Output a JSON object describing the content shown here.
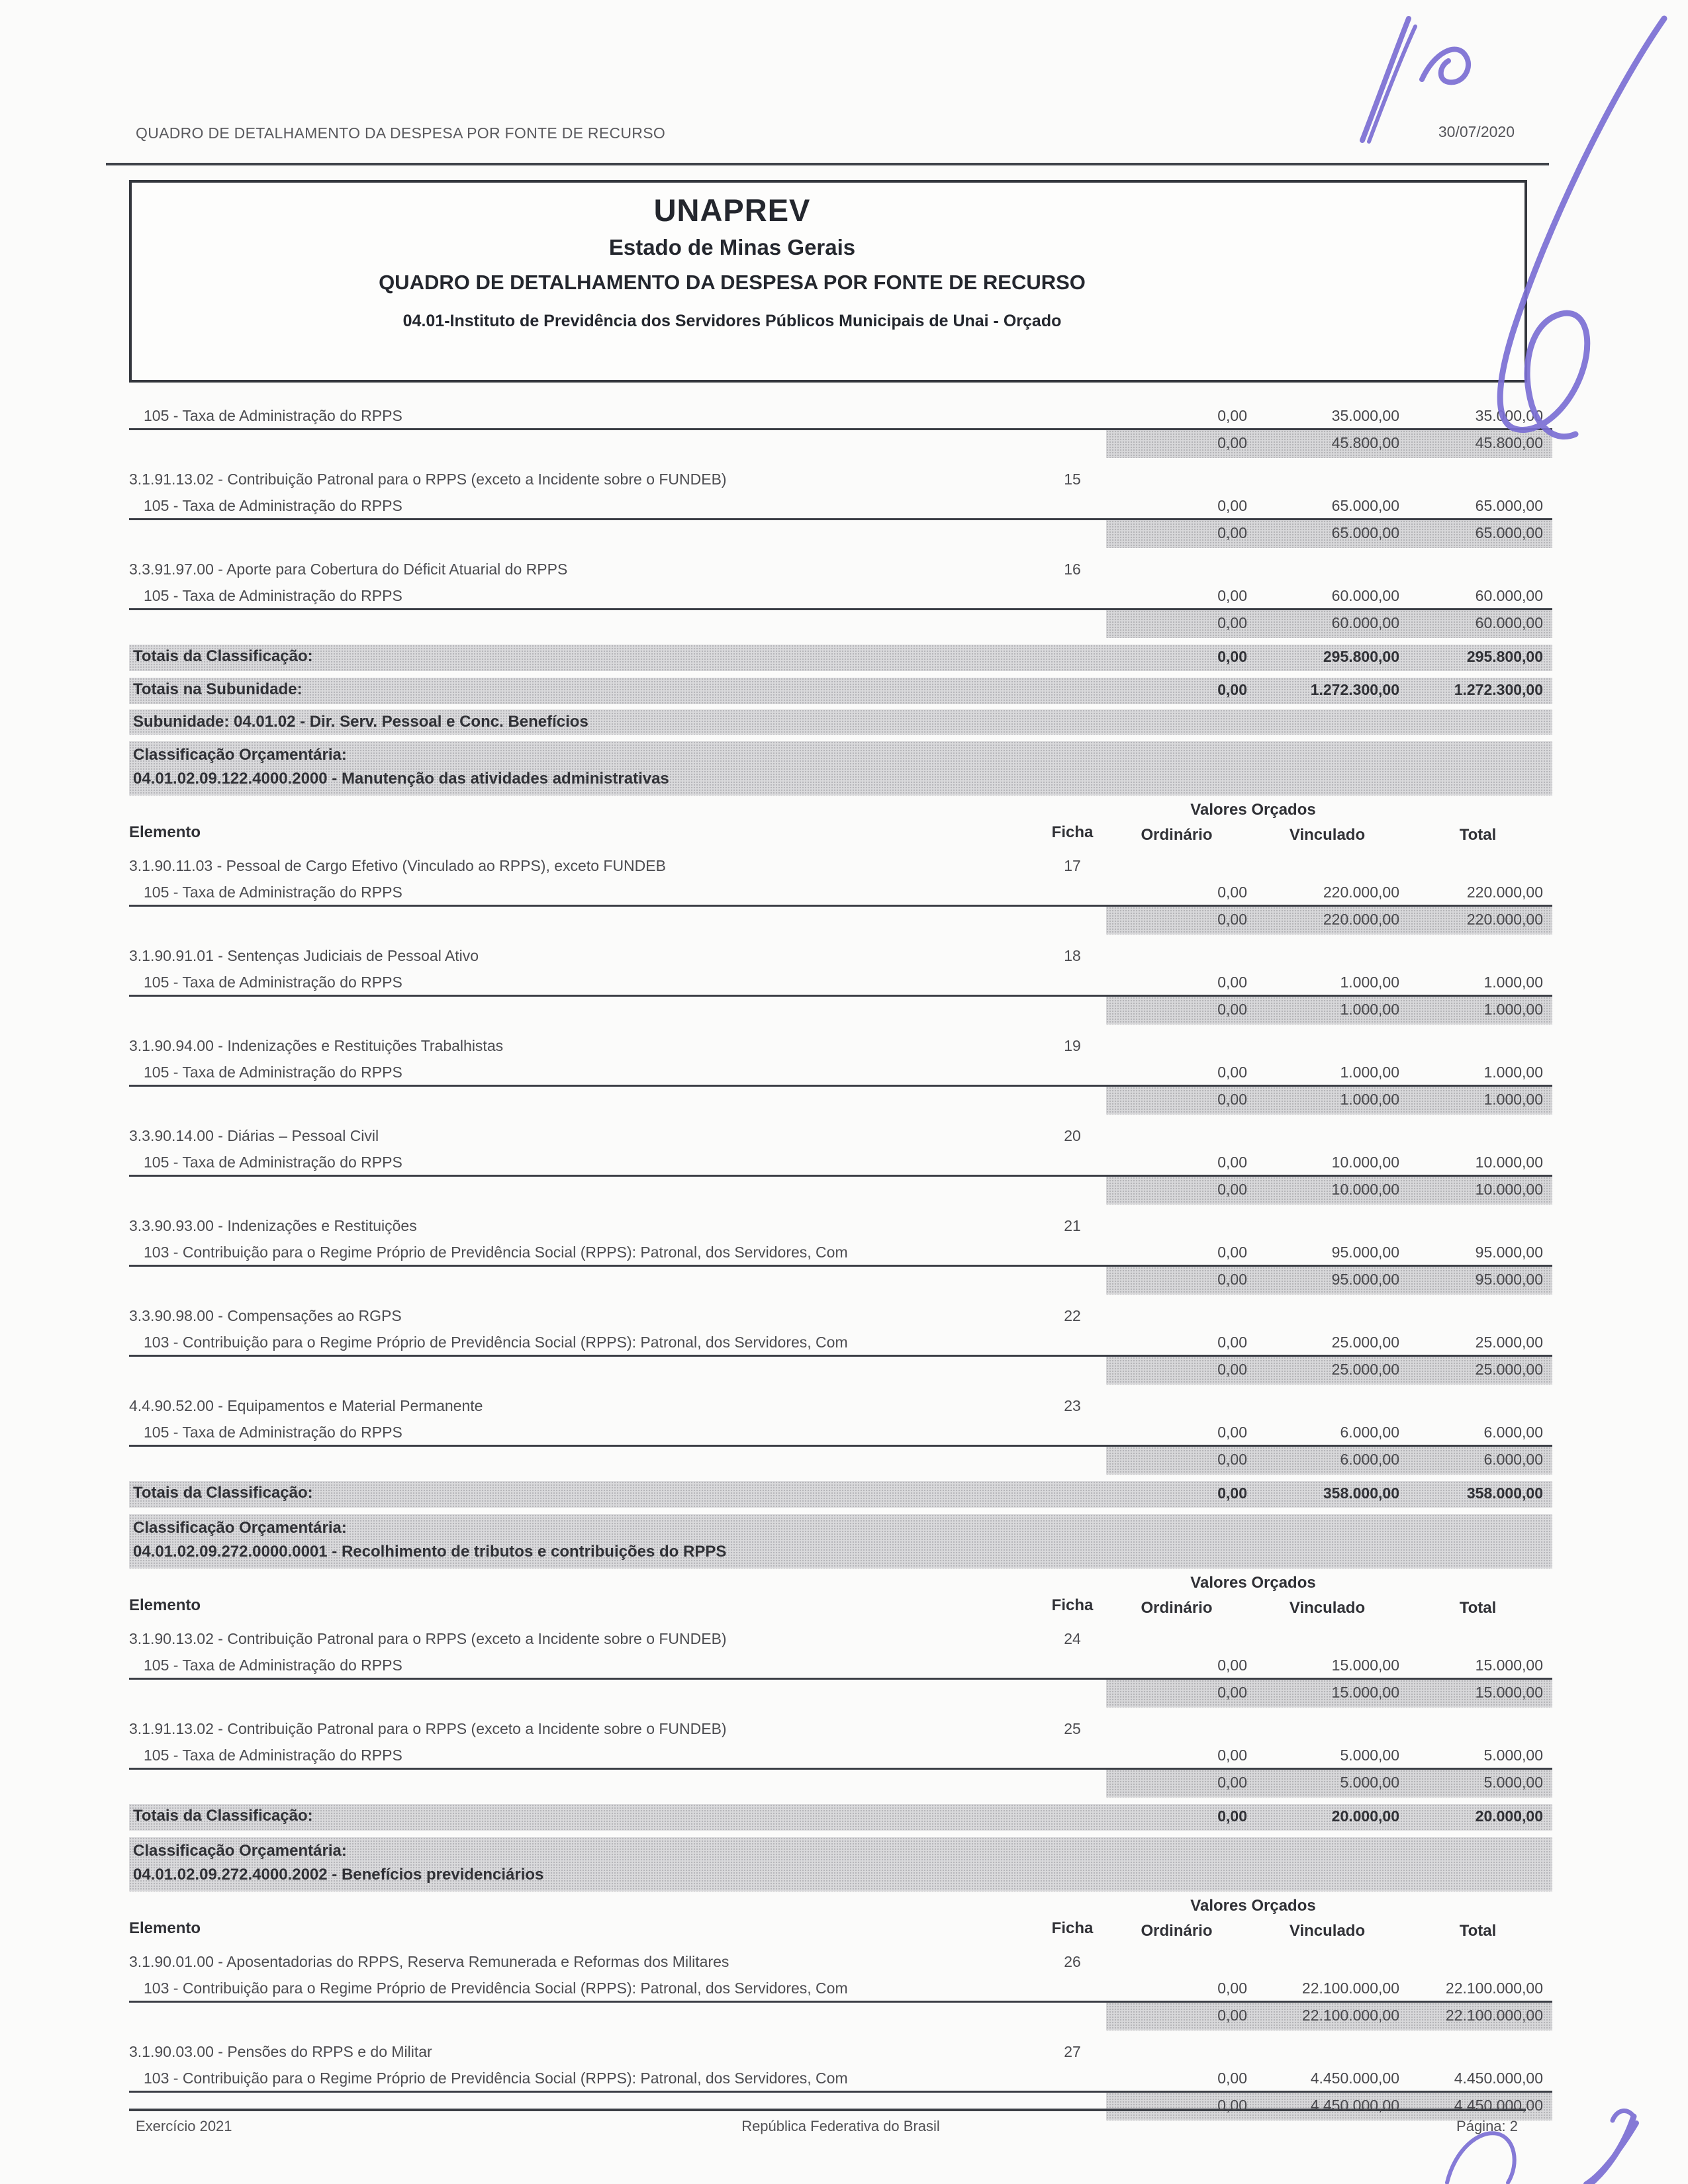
{
  "page_header": {
    "title": "QUADRO DE DETALHAMENTO DA DESPESA POR FONTE DE RECURSO",
    "date": "30/07/2020"
  },
  "title_box": {
    "org": "UNAPREV",
    "state": "Estado de Minas Gerais",
    "report": "QUADRO DE DETALHAMENTO DA DESPESA POR FONTE DE RECURSO",
    "unit": "04.01-Instituto de Previdência dos Servidores Públicos Municipais de Unai - Orçado"
  },
  "pen_color": "#7b6fd4",
  "table": {
    "valores_caption": "Valores Orçados",
    "columns": {
      "elemento": "Elemento",
      "ficha": "Ficha",
      "ordinario": "Ordinário",
      "vinculado": "Vinculado",
      "total": "Total"
    },
    "rows": [
      {
        "type": "fonte",
        "label": "105 - Taxa de Administração do RPPS",
        "ordinario": "0,00",
        "vinculado": "35.000,00",
        "total": "35.000,00"
      },
      {
        "type": "subtotal",
        "ordinario": "0,00",
        "vinculado": "45.800,00",
        "total": "45.800,00"
      },
      {
        "type": "element",
        "label": "3.1.91.13.02 - Contribuição Patronal para o RPPS (exceto a Incidente sobre o FUNDEB)",
        "ficha": "15"
      },
      {
        "type": "fonte",
        "label": "105 - Taxa de Administração do RPPS",
        "ordinario": "0,00",
        "vinculado": "65.000,00",
        "total": "65.000,00"
      },
      {
        "type": "subtotal",
        "ordinario": "0,00",
        "vinculado": "65.000,00",
        "total": "65.000,00"
      },
      {
        "type": "element",
        "label": "3.3.91.97.00 - Aporte para Cobertura do Déficit Atuarial do RPPS",
        "ficha": "16"
      },
      {
        "type": "fonte",
        "label": "105 - Taxa de Administração do RPPS",
        "ordinario": "0,00",
        "vinculado": "60.000,00",
        "total": "60.000,00"
      },
      {
        "type": "subtotal",
        "ordinario": "0,00",
        "vinculado": "60.000,00",
        "total": "60.000,00"
      },
      {
        "type": "totals",
        "label": "Totais da Classificação:",
        "ordinario": "0,00",
        "vinculado": "295.800,00",
        "total": "295.800,00"
      },
      {
        "type": "totals",
        "label": "Totais na Subunidade:",
        "ordinario": "0,00",
        "vinculado": "1.272.300,00",
        "total": "1.272.300,00"
      },
      {
        "type": "band",
        "label": "Subunidade: 04.01.02 - Dir. Serv. Pessoal e Conc. Benefícios"
      },
      {
        "type": "band2",
        "line1": "Classificação Orçamentária:",
        "line2": "04.01.02.09.122.4000.2000 - Manutenção das atividades administrativas"
      },
      {
        "type": "valores"
      },
      {
        "type": "colheaders"
      },
      {
        "type": "element",
        "label": "3.1.90.11.03 - Pessoal de Cargo Efetivo (Vinculado ao RPPS), exceto FUNDEB",
        "ficha": "17"
      },
      {
        "type": "fonte",
        "label": "105 - Taxa de Administração do RPPS",
        "ordinario": "0,00",
        "vinculado": "220.000,00",
        "total": "220.000,00"
      },
      {
        "type": "subtotal",
        "ordinario": "0,00",
        "vinculado": "220.000,00",
        "total": "220.000,00"
      },
      {
        "type": "element",
        "label": "3.1.90.91.01 - Sentenças Judiciais de Pessoal Ativo",
        "ficha": "18"
      },
      {
        "type": "fonte",
        "label": "105 - Taxa de Administração do RPPS",
        "ordinario": "0,00",
        "vinculado": "1.000,00",
        "total": "1.000,00"
      },
      {
        "type": "subtotal",
        "ordinario": "0,00",
        "vinculado": "1.000,00",
        "total": "1.000,00"
      },
      {
        "type": "element",
        "label": "3.1.90.94.00 - Indenizações e Restituições Trabalhistas",
        "ficha": "19"
      },
      {
        "type": "fonte",
        "label": "105 - Taxa de Administração do RPPS",
        "ordinario": "0,00",
        "vinculado": "1.000,00",
        "total": "1.000,00"
      },
      {
        "type": "subtotal",
        "ordinario": "0,00",
        "vinculado": "1.000,00",
        "total": "1.000,00"
      },
      {
        "type": "element",
        "label": "3.3.90.14.00 - Diárias – Pessoal Civil",
        "ficha": "20"
      },
      {
        "type": "fonte",
        "label": "105 - Taxa de Administração do RPPS",
        "ordinario": "0,00",
        "vinculado": "10.000,00",
        "total": "10.000,00"
      },
      {
        "type": "subtotal",
        "ordinario": "0,00",
        "vinculado": "10.000,00",
        "total": "10.000,00"
      },
      {
        "type": "element",
        "label": "3.3.90.93.00 - Indenizações e Restituições",
        "ficha": "21"
      },
      {
        "type": "fonte",
        "label": "103 - Contribuição para o Regime Próprio de Previdência Social (RPPS): Patronal, dos Servidores, Com",
        "ordinario": "0,00",
        "vinculado": "95.000,00",
        "total": "95.000,00"
      },
      {
        "type": "subtotal",
        "ordinario": "0,00",
        "vinculado": "95.000,00",
        "total": "95.000,00"
      },
      {
        "type": "element",
        "label": "3.3.90.98.00 - Compensações ao RGPS",
        "ficha": "22"
      },
      {
        "type": "fonte",
        "label": "103 - Contribuição para o Regime Próprio de Previdência Social (RPPS): Patronal, dos Servidores, Com",
        "ordinario": "0,00",
        "vinculado": "25.000,00",
        "total": "25.000,00"
      },
      {
        "type": "subtotal",
        "ordinario": "0,00",
        "vinculado": "25.000,00",
        "total": "25.000,00"
      },
      {
        "type": "element",
        "label": "4.4.90.52.00 - Equipamentos e Material Permanente",
        "ficha": "23"
      },
      {
        "type": "fonte",
        "label": "105 - Taxa de Administração do RPPS",
        "ordinario": "0,00",
        "vinculado": "6.000,00",
        "total": "6.000,00"
      },
      {
        "type": "subtotal",
        "ordinario": "0,00",
        "vinculado": "6.000,00",
        "total": "6.000,00"
      },
      {
        "type": "totals",
        "label": "Totais da Classificação:",
        "ordinario": "0,00",
        "vinculado": "358.000,00",
        "total": "358.000,00"
      },
      {
        "type": "band2",
        "line1": "Classificação Orçamentária:",
        "line2": "04.01.02.09.272.0000.0001 - Recolhimento de tributos e contribuições do RPPS"
      },
      {
        "type": "valores"
      },
      {
        "type": "colheaders"
      },
      {
        "type": "element",
        "label": "3.1.90.13.02 - Contribuição Patronal para o RPPS (exceto a Incidente sobre o FUNDEB)",
        "ficha": "24"
      },
      {
        "type": "fonte",
        "label": "105 - Taxa de Administração do RPPS",
        "ordinario": "0,00",
        "vinculado": "15.000,00",
        "total": "15.000,00"
      },
      {
        "type": "subtotal",
        "ordinario": "0,00",
        "vinculado": "15.000,00",
        "total": "15.000,00"
      },
      {
        "type": "element",
        "label": "3.1.91.13.02 - Contribuição Patronal para o RPPS (exceto a Incidente sobre o FUNDEB)",
        "ficha": "25"
      },
      {
        "type": "fonte",
        "label": "105 - Taxa de Administração do RPPS",
        "ordinario": "0,00",
        "vinculado": "5.000,00",
        "total": "5.000,00"
      },
      {
        "type": "subtotal",
        "ordinario": "0,00",
        "vinculado": "5.000,00",
        "total": "5.000,00"
      },
      {
        "type": "totals",
        "label": "Totais da Classificação:",
        "ordinario": "0,00",
        "vinculado": "20.000,00",
        "total": "20.000,00"
      },
      {
        "type": "band2",
        "line1": "Classificação Orçamentária:",
        "line2": "04.01.02.09.272.4000.2002 - Benefícios previdenciários"
      },
      {
        "type": "valores"
      },
      {
        "type": "colheaders"
      },
      {
        "type": "element",
        "label": "3.1.90.01.00 - Aposentadorias do RPPS, Reserva Remunerada e Reformas dos Militares",
        "ficha": "26"
      },
      {
        "type": "fonte",
        "label": "103 - Contribuição para o Regime Próprio de Previdência Social (RPPS): Patronal, dos Servidores, Com",
        "ordinario": "0,00",
        "vinculado": "22.100.000,00",
        "total": "22.100.000,00"
      },
      {
        "type": "subtotal",
        "ordinario": "0,00",
        "vinculado": "22.100.000,00",
        "total": "22.100.000,00"
      },
      {
        "type": "element",
        "label": "3.1.90.03.00 - Pensões do RPPS e do Militar",
        "ficha": "27"
      },
      {
        "type": "fonte",
        "label": "103 - Contribuição para o Regime Próprio de Previdência Social (RPPS): Patronal, dos Servidores, Com",
        "ordinario": "0,00",
        "vinculado": "4.450.000,00",
        "total": "4.450.000,00"
      },
      {
        "type": "subtotal",
        "ordinario": "0,00",
        "vinculado": "4.450.000,00",
        "total": "4.450.000,00"
      }
    ]
  },
  "footer": {
    "exercicio": "Exercício 2021",
    "center": "República Federativa do Brasil",
    "pagina": "Página: 2"
  }
}
